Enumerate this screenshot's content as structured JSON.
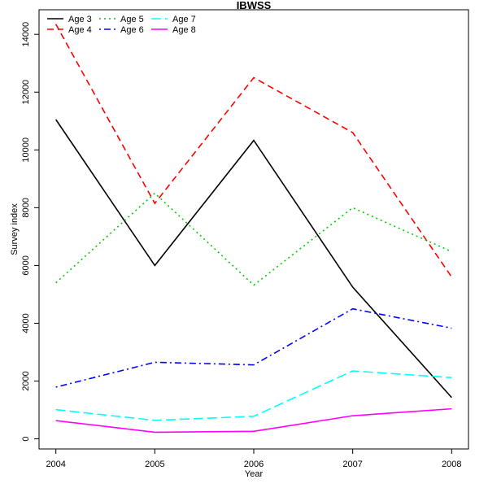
{
  "chart_data": {
    "type": "line",
    "title": "IBWSS",
    "xlabel": "Year",
    "ylabel": "Survey index",
    "x": [
      2004,
      2005,
      2006,
      2007,
      2008
    ],
    "xlim": [
      2003.83,
      2008.17
    ],
    "ylim": [
      -350,
      14850
    ],
    "xticks": [
      2004,
      2005,
      2006,
      2007,
      2008
    ],
    "yticks": [
      0,
      2000,
      4000,
      6000,
      8000,
      10000,
      12000,
      14000
    ],
    "grid": false,
    "legend_position": "top-left",
    "series": [
      {
        "name": "Age 3",
        "color": "#000000",
        "dash": "solid",
        "values": [
          11050,
          6000,
          10330,
          5250,
          1430
        ]
      },
      {
        "name": "Age 4",
        "color": "#ff0000",
        "dash": "dashed",
        "values": [
          14350,
          8150,
          12500,
          10600,
          5600
        ]
      },
      {
        "name": "Age 5",
        "color": "#00cd00",
        "dash": "dotted",
        "values": [
          5400,
          8500,
          5320,
          8000,
          6480
        ]
      },
      {
        "name": "Age 6",
        "color": "#0000ff",
        "dash": "dotdash",
        "values": [
          1790,
          2650,
          2560,
          4500,
          3830
        ]
      },
      {
        "name": "Age 7",
        "color": "#00ffff",
        "dash": "longdash",
        "values": [
          1010,
          640,
          780,
          2350,
          2120
        ]
      },
      {
        "name": "Age 8",
        "color": "#ff00ff",
        "dash": "solid",
        "values": [
          630,
          230,
          260,
          800,
          1040
        ]
      }
    ]
  }
}
